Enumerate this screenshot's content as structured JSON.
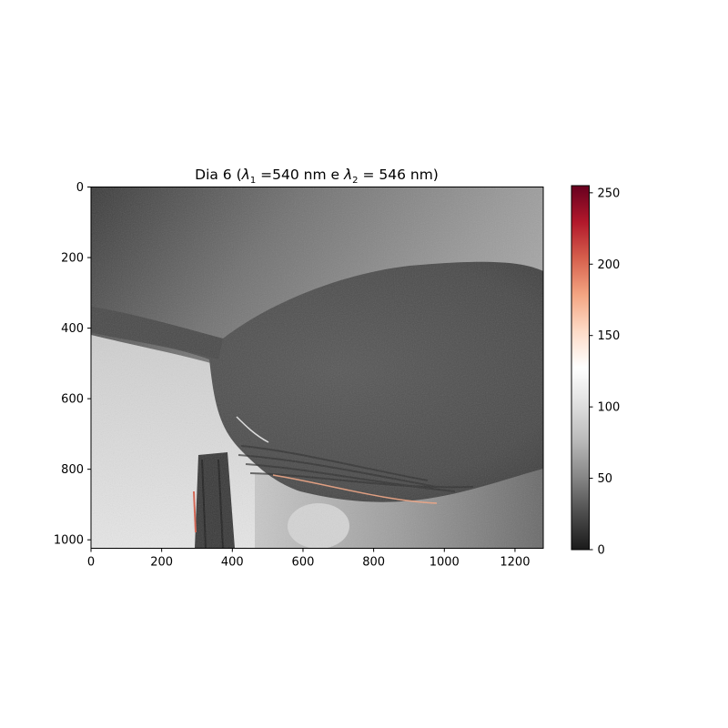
{
  "chart_data": {
    "type": "heatmap",
    "title": {
      "prefix": "Dia 6 (",
      "lambda": "λ",
      "sub1": "1",
      "mid": " =540 nm e ",
      "sub2": "2",
      "suffix": " = 546 nm)"
    },
    "xlabel": "",
    "ylabel": "",
    "xlim": [
      0,
      1280
    ],
    "ylim": [
      1024,
      0
    ],
    "x_ticks": [
      0,
      200,
      400,
      600,
      800,
      1000,
      1200
    ],
    "y_ticks": [
      0,
      200,
      400,
      600,
      800,
      1000
    ],
    "colorbar": {
      "range": [
        0,
        255
      ],
      "ticks": [
        0,
        50,
        100,
        150,
        200,
        250
      ],
      "colormap": "RdGy_r",
      "stops": [
        "#1a1a1a",
        "#4d4d4d",
        "#878787",
        "#bababa",
        "#e0e0e0",
        "#ffffff",
        "#fddbc7",
        "#f4a582",
        "#d6604d",
        "#b2182b",
        "#67001f"
      ]
    },
    "image_regions": {
      "background_top": {
        "value_range": [
          45,
          95
        ],
        "gradient": "dark top-left to light right"
      },
      "background_lower_left": {
        "value_range": [
          100,
          120
        ]
      },
      "drop_body": {
        "value_range": [
          55,
          75
        ]
      },
      "bright_blob": {
        "center": [
          595,
          940
        ],
        "value": 105
      },
      "highlight_edges": {
        "value_range": [
          150,
          210
        ]
      }
    }
  }
}
